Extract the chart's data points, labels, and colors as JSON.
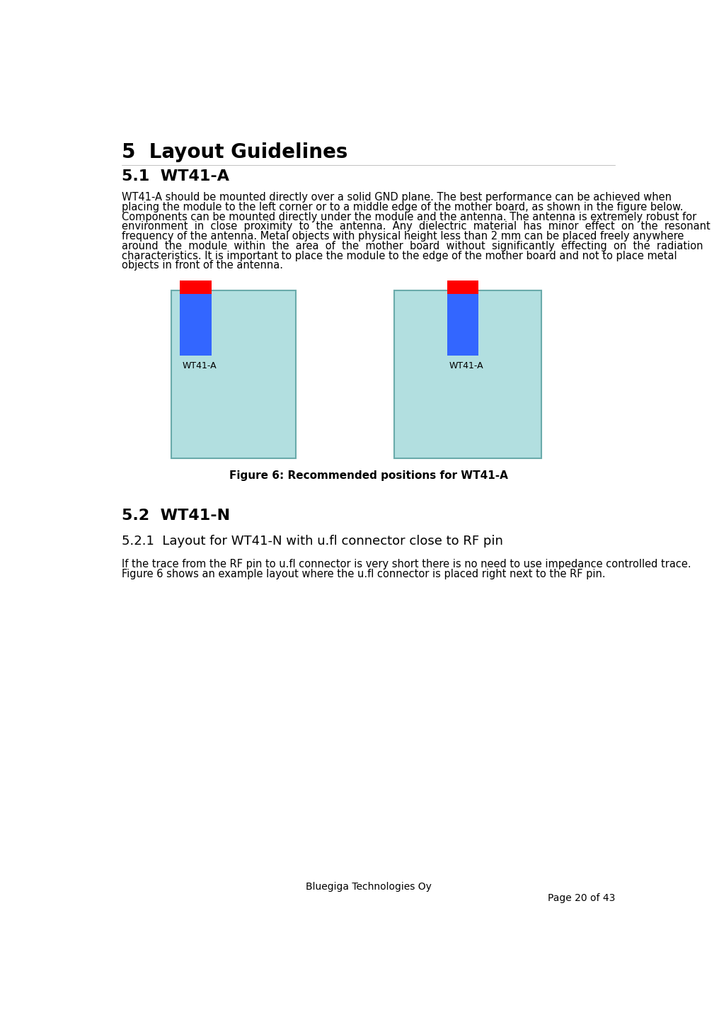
{
  "title": "5  Layout Guidelines",
  "section_51_title": "5.1  WT41-A",
  "figure_caption": "Figure 6: Recommended positions for WT41-A",
  "module_label": "WT41-A",
  "section_52_title": "5.2  WT41-N",
  "section_521_title": "5.2.1  Layout for WT41-N with u.fl connector close to RF pin",
  "footer_company": "Bluegiga Technologies Oy",
  "footer_page": "Page 20 of 43",
  "bg_color": "#FFFFFF",
  "board_color": "#B2DFE0",
  "board_border_color": "#6AABAB",
  "module_color": "#3366FF",
  "antenna_color": "#FF0000",
  "text_color": "#000000",
  "body_51_lines": [
    "WT41-A should be mounted directly over a solid GND plane. The best performance can be achieved when",
    "placing the module to the left corner or to a middle edge of the mother board, as shown in the figure below.",
    "Components can be mounted directly under the module and the antenna. The antenna is extremely robust for",
    "environment  in  close  proximity  to  the  antenna.  Any  dielectric  material  has  minor  effect  on  the  resonant",
    "frequency of the antenna. Metal objects with physical height less than 2 mm can be placed freely anywhere",
    "around  the  module  within  the  area  of  the  mother  board  without  significantly  effecting  on  the  radiation",
    "characteristics. It is important to place the module to the edge of the mother board and not to place metal",
    "objects in front of the antenna."
  ],
  "body_521_lines": [
    "If the trace from the RF pin to u.fl connector is very short there is no need to use impedance controlled trace.",
    "Figure 6 shows an example layout where the u.fl connector is placed right next to the RF pin."
  ]
}
